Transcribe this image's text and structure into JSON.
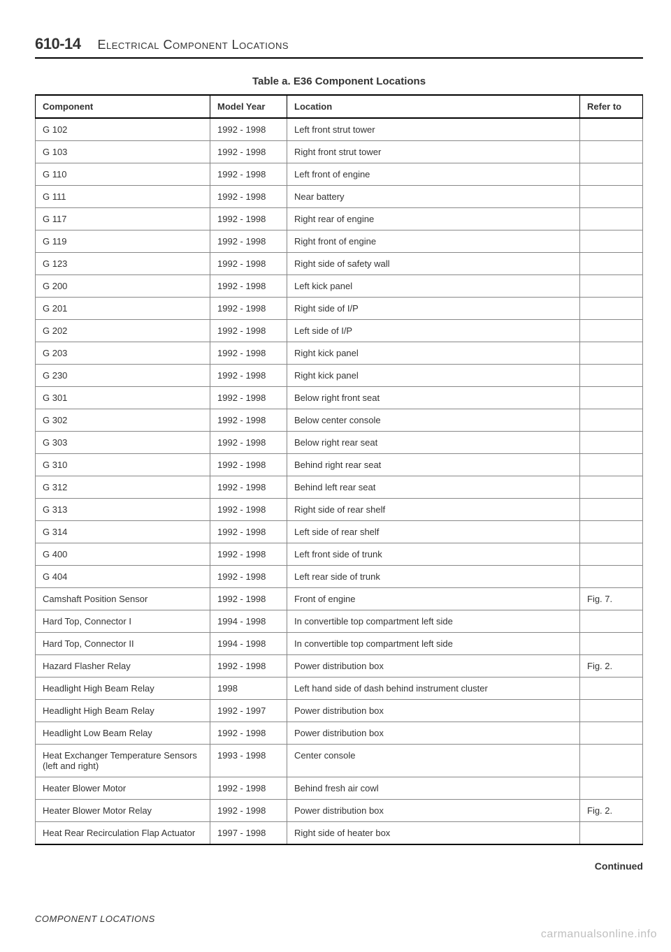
{
  "page_number": "610-14",
  "page_title": "Electrical Component Locations",
  "table_caption": "Table a. E36 Component Locations",
  "table": {
    "columns": [
      "Component",
      "Model Year",
      "Location",
      "Refer to"
    ],
    "col_widths": [
      "250px",
      "110px",
      "auto",
      "90px"
    ],
    "rows": [
      [
        "G 102",
        "1992 - 1998",
        "Left front strut tower",
        ""
      ],
      [
        "G 103",
        "1992 - 1998",
        "Right front strut tower",
        ""
      ],
      [
        "G 110",
        "1992 - 1998",
        "Left front of engine",
        ""
      ],
      [
        "G 111",
        "1992 - 1998",
        "Near battery",
        ""
      ],
      [
        "G 117",
        "1992 - 1998",
        "Right rear of engine",
        ""
      ],
      [
        "G 119",
        "1992 - 1998",
        "Right front of engine",
        ""
      ],
      [
        "G 123",
        "1992 - 1998",
        "Right side of safety wall",
        ""
      ],
      [
        "G 200",
        "1992 - 1998",
        "Left kick panel",
        ""
      ],
      [
        "G 201",
        "1992 - 1998",
        "Right side of I/P",
        ""
      ],
      [
        "G 202",
        "1992 - 1998",
        "Left side of I/P",
        ""
      ],
      [
        "G 203",
        "1992 - 1998",
        "Right kick panel",
        ""
      ],
      [
        "G 230",
        "1992 - 1998",
        "Right kick panel",
        ""
      ],
      [
        "G 301",
        "1992 - 1998",
        "Below right front seat",
        ""
      ],
      [
        "G 302",
        "1992 - 1998",
        "Below center console",
        ""
      ],
      [
        "G 303",
        "1992 - 1998",
        "Below right rear seat",
        ""
      ],
      [
        "G 310",
        "1992 - 1998",
        "Behind right rear seat",
        ""
      ],
      [
        "G 312",
        "1992 - 1998",
        "Behind left rear seat",
        ""
      ],
      [
        "G 313",
        "1992 - 1998",
        "Right side of rear shelf",
        ""
      ],
      [
        "G 314",
        "1992 - 1998",
        "Left side of rear shelf",
        ""
      ],
      [
        "G 400",
        "1992 - 1998",
        "Left front side of trunk",
        ""
      ],
      [
        "G 404",
        "1992 - 1998",
        "Left rear side of trunk",
        ""
      ],
      [
        "Camshaft Position Sensor",
        "1992 - 1998",
        "Front of engine",
        "Fig. 7."
      ],
      [
        "Hard Top, Connector I",
        "1994 - 1998",
        "In convertible top compartment left side",
        ""
      ],
      [
        "Hard Top, Connector II",
        "1994 - 1998",
        "In convertible top compartment left side",
        ""
      ],
      [
        "Hazard Flasher Relay",
        "1992 - 1998",
        "Power distribution box",
        "Fig. 2."
      ],
      [
        "Headlight High Beam Relay",
        "1998",
        "Left hand side of dash behind instrument cluster",
        ""
      ],
      [
        "Headlight High Beam Relay",
        "1992 - 1997",
        "Power distribution box",
        ""
      ],
      [
        "Headlight Low Beam Relay",
        "1992 - 1998",
        "Power distribution box",
        ""
      ],
      [
        "Heat Exchanger Temperature Sensors (left and right)",
        "1993 - 1998",
        "Center console",
        ""
      ],
      [
        "Heater Blower Motor",
        "1992 - 1998",
        "Behind fresh air cowl",
        ""
      ],
      [
        "Heater Blower Motor Relay",
        "1992 - 1998",
        "Power distribution box",
        "Fig. 2."
      ],
      [
        "Heat Rear Recirculation Flap Actuator",
        "1997 - 1998",
        "Right side of heater box",
        ""
      ]
    ]
  },
  "continued_label": "Continued",
  "footer_label": "COMPONENT LOCATIONS",
  "watermark": "carmanualsonline.info",
  "colors": {
    "border_main": "#000000",
    "border_cell": "#888888",
    "text": "#333333",
    "watermark": "#bfbfbf",
    "background": "#ffffff"
  }
}
